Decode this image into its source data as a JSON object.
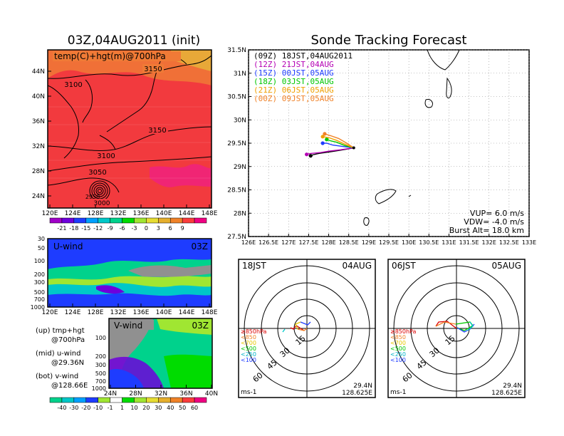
{
  "left_panel": {
    "title": "03Z,04AUG2011 (init)",
    "map_label": "temp(C)+hgt(m)@700hPa",
    "lat_ticks": [
      "44N",
      "40N",
      "36N",
      "32N",
      "28N",
      "24N"
    ],
    "lon_ticks": [
      "120E",
      "124E",
      "128E",
      "132E",
      "136E",
      "140E",
      "144E",
      "148E"
    ],
    "contours": [
      "3150",
      "3100",
      "3150",
      "3100",
      "3050",
      "3000",
      "2950"
    ],
    "colorbar_labels": [
      "-21",
      "-18",
      "-15",
      "-12",
      "-9",
      "-6",
      "-3",
      "0",
      "3",
      "6",
      "9"
    ],
    "colorbar_colors": [
      "#a000c8",
      "#6e00dc",
      "#1e3cff",
      "#00a0ff",
      "#00c8c8",
      "#00d28c",
      "#00dc00",
      "#a0e632",
      "#e6dc32",
      "#e6af2d",
      "#f08228",
      "#fa3c3c",
      "#f00082"
    ]
  },
  "u_panel": {
    "label": "U-wind",
    "time": "03Z",
    "pres_ticks": [
      "30",
      "50",
      "100",
      "200",
      "300",
      "500",
      "700",
      "1000"
    ],
    "lon_ticks": [
      "120E",
      "124E",
      "128E",
      "132E",
      "136E",
      "140E",
      "144E",
      "148E"
    ]
  },
  "v_panel": {
    "label": "V-wind",
    "time": "03Z",
    "pres_ticks": [
      "100",
      "200",
      "300",
      "500",
      "700",
      "1000"
    ],
    "lat_ticks": [
      "24N",
      "28N",
      "32N",
      "36N",
      "40N"
    ],
    "colorbar_labels": [
      "-40",
      "-30",
      "-20",
      "-10",
      "-1",
      "1",
      "10",
      "20",
      "30",
      "40",
      "50",
      "60"
    ],
    "colorbar_colors": [
      "#00d28c",
      "#00c8c8",
      "#00a0ff",
      "#1e3cff",
      "#a0e632",
      "#ffffff",
      "#00dc00",
      "#a0e632",
      "#e6dc32",
      "#e6af2d",
      "#f08228",
      "#fa3c3c",
      "#f00082"
    ]
  },
  "legend_notes": [
    {
      "line1": "(up) tmp+hgt",
      "line2": "@700hPa"
    },
    {
      "line1": "(mid) u-wind",
      "line2": "@29.36N"
    },
    {
      "line1": "(bot) v-wind",
      "line2": "@128.66E"
    }
  ],
  "main": {
    "title": "Sonde Tracking Forecast",
    "vup": "VUP= 6.0 m/s",
    "vdw": "VDW= -4.0 m/s",
    "burst": "Burst Alt= 18.0 km"
  },
  "chart_data": {
    "type": "line",
    "xlim": [
      126,
      133
    ],
    "ylim": [
      27.5,
      31.5
    ],
    "xticks": [
      126,
      126.5,
      127,
      127.5,
      128,
      128.5,
      129,
      129.5,
      130,
      130.5,
      131,
      131.5,
      132,
      132.5,
      133
    ],
    "xtick_labels": [
      "126E",
      "126.5E",
      "127E",
      "127.5E",
      "128E",
      "128.5E",
      "129E",
      "129.5E",
      "130E",
      "130.5E",
      "131E",
      "131.5E",
      "132E",
      "132.5E",
      "133E"
    ],
    "yticks": [
      27.5,
      28,
      28.5,
      29,
      29.5,
      30,
      30.5,
      31,
      31.5
    ],
    "ytick_labels": [
      "27.5N",
      "28N",
      "28.5N",
      "29N",
      "29.5N",
      "30N",
      "30.5N",
      "31N",
      "31.5N"
    ],
    "grid": true,
    "legend_position": "top-left",
    "launch": [
      128.625,
      29.4
    ],
    "series": [
      {
        "name": "(09Z) 18JST,04AUG2011",
        "color": "#000000",
        "x": [
          128.625,
          128.3,
          128.0,
          127.75,
          127.6,
          127.55
        ],
        "y": [
          29.4,
          29.35,
          29.31,
          29.28,
          29.25,
          29.23
        ]
      },
      {
        "name": "(12Z) 21JST,04AUG",
        "color": "#b400b4",
        "x": [
          128.625,
          128.3,
          128.0,
          127.8,
          127.55,
          127.45
        ],
        "y": [
          29.4,
          29.36,
          29.33,
          29.3,
          29.28,
          29.26
        ]
      },
      {
        "name": "(15Z) 00JST,05AUG",
        "color": "#1e3cff",
        "x": [
          128.625,
          128.35,
          128.1,
          127.95,
          127.85
        ],
        "y": [
          29.4,
          29.43,
          29.46,
          29.5,
          29.5
        ]
      },
      {
        "name": "(18Z) 03JST,05AUG",
        "color": "#00c800",
        "x": [
          128.625,
          128.4,
          128.2,
          128.05,
          127.95
        ],
        "y": [
          29.4,
          29.45,
          29.52,
          29.55,
          29.58
        ]
      },
      {
        "name": "(21Z) 06JST,05AUG",
        "color": "#f0a000",
        "x": [
          128.625,
          128.4,
          128.2,
          128.0,
          127.85
        ],
        "y": [
          29.4,
          29.48,
          29.56,
          29.62,
          29.64
        ]
      },
      {
        "name": "(00Z) 09JST,05AUG",
        "color": "#f08228",
        "x": [
          128.625,
          128.45,
          128.25,
          128.05,
          127.9
        ],
        "y": [
          29.4,
          29.5,
          29.6,
          29.66,
          29.7
        ]
      }
    ]
  },
  "polar_left": {
    "time_label": "18JST",
    "date_label": "04AUG",
    "ring_labels": [
      "15",
      "30",
      "45",
      "60"
    ],
    "legend": [
      {
        "label": "≥850hPa",
        "color": "#dc0000"
      },
      {
        "label": "<850",
        "color": "#f08228"
      },
      {
        "label": "<700",
        "color": "#e6c800"
      },
      {
        "label": "<500",
        "color": "#00c800"
      },
      {
        "label": "<250",
        "color": "#00b4c8"
      },
      {
        "label": "<100",
        "color": "#1e3cff"
      }
    ],
    "units": "ms-1",
    "lat": "29.4N",
    "lon": "128.625E"
  },
  "polar_right": {
    "time_label": "06JST",
    "date_label": "05AUG",
    "ring_labels": [
      "15",
      "30",
      "45",
      "60"
    ],
    "legend": [
      {
        "label": "≥850hPa",
        "color": "#dc0000"
      },
      {
        "label": "<850",
        "color": "#f08228"
      },
      {
        "label": "<700",
        "color": "#e6c800"
      },
      {
        "label": "<500",
        "color": "#00c800"
      },
      {
        "label": "<250",
        "color": "#00b4c8"
      },
      {
        "label": "<100",
        "color": "#1e3cff"
      }
    ],
    "units": "ms-1",
    "lat": "29.4N",
    "lon": "128.625E"
  }
}
